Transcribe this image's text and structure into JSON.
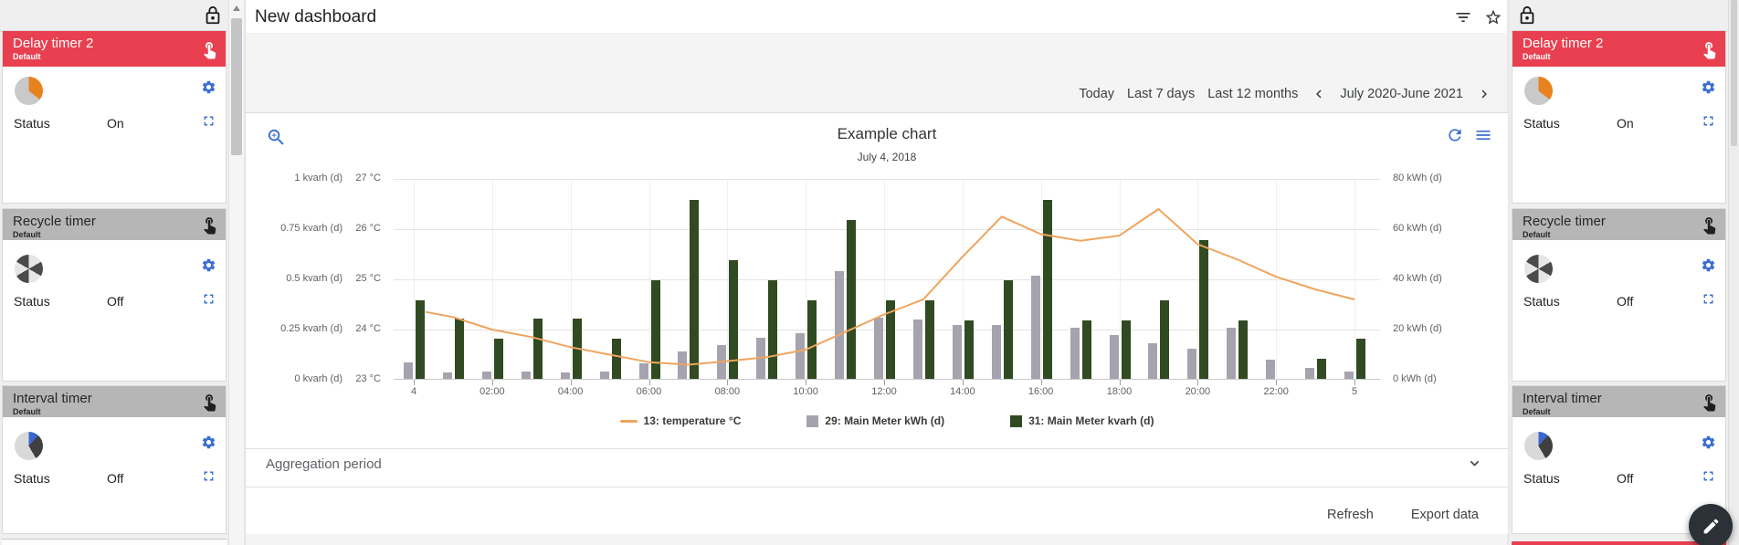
{
  "page": {
    "title": "New dashboard"
  },
  "header_icons": {
    "filter": "filter-list",
    "favorite": "star-outline"
  },
  "toolbar": {
    "today": "Today",
    "last7": "Last 7 days",
    "last12": "Last 12 months",
    "range_label": "July 2020-June 2021"
  },
  "sidebar": {
    "cards": [
      {
        "title": "Delay timer 2",
        "subtitle": "Default",
        "status_label": "Status",
        "status_value": "On",
        "accent": "#e84050"
      },
      {
        "title": "Recycle timer",
        "subtitle": "Default",
        "status_label": "Status",
        "status_value": "Off",
        "accent": "#b6b6b6"
      },
      {
        "title": "Interval timer",
        "subtitle": "Default",
        "status_label": "Status",
        "status_value": "Off",
        "accent": "#b6b6b6"
      }
    ]
  },
  "aggregation": {
    "label": "Aggregation period"
  },
  "actions": {
    "refresh": "Refresh",
    "export": "Export data"
  },
  "colors": {
    "accent_red": "#e84050",
    "icon_blue": "#3b6fd1",
    "bar_gray": "#a5a3ad",
    "bar_green": "#304a21",
    "line_orange": "#efa45e"
  },
  "chart_data": {
    "type": "bar+line",
    "title": "Example chart",
    "subtitle": "July 4, 2018",
    "x_tick_labels": [
      "4",
      "02:00",
      "04:00",
      "06:00",
      "08:00",
      "10:00",
      "12:00",
      "14:00",
      "16:00",
      "18:00",
      "20:00",
      "22:00",
      "5"
    ],
    "x_tick_hours": [
      0,
      2,
      4,
      6,
      8,
      10,
      12,
      14,
      16,
      18,
      20,
      22,
      24
    ],
    "axes": {
      "left_outer": {
        "label_ticks": [
          "0 kvarh (d)",
          "0.25 kvarh (d)",
          "0.5 kvarh (d)",
          "0.75 kvarh (d)",
          "1 kvarh (d)"
        ],
        "min": 0,
        "max": 1
      },
      "left_inner": {
        "label_ticks": [
          "23 °C",
          "24 °C",
          "25 °C",
          "26 °C",
          "27 °C"
        ],
        "min": 23,
        "max": 27
      },
      "right": {
        "label_ticks": [
          "0 kWh (d)",
          "20 kWh (d)",
          "40 kWh (d)",
          "60 kWh (d)",
          "80 kWh (d)"
        ],
        "min": 0,
        "max": 80
      }
    },
    "legend_position": "bottom",
    "grid": true,
    "series": [
      {
        "name": "13: temperature °C",
        "type": "line",
        "axis": "left_inner",
        "color": "#efa45e",
        "x": [
          0.3,
          1,
          2,
          3,
          4,
          5,
          6,
          7,
          8,
          9,
          10,
          11,
          12,
          13,
          14,
          15,
          16,
          17,
          18,
          19,
          20,
          21,
          22,
          23,
          24
        ],
        "values": [
          24.35,
          24.25,
          24.0,
          23.85,
          23.65,
          23.5,
          23.35,
          23.3,
          23.37,
          23.45,
          23.6,
          23.95,
          24.3,
          24.6,
          25.45,
          26.25,
          25.9,
          25.77,
          25.87,
          26.4,
          25.7,
          25.4,
          25.05,
          24.8,
          24.6
        ]
      },
      {
        "name": "29: Main Meter kWh (d)",
        "type": "bar",
        "axis": "right",
        "color": "#a5a3ad",
        "x": [
          0,
          1,
          2,
          3,
          4,
          5,
          6,
          7,
          8,
          9,
          10,
          11,
          12,
          13,
          14,
          15,
          16,
          17,
          18,
          19,
          20,
          21,
          22,
          23,
          24
        ],
        "values": [
          6.5,
          2.5,
          3,
          3,
          2.5,
          3,
          6,
          11,
          13.5,
          16.5,
          18,
          43,
          24.5,
          23.5,
          21.5,
          21.5,
          41,
          20.5,
          17.5,
          14,
          12,
          20.5,
          7.5,
          4.5,
          3
        ]
      },
      {
        "name": "31: Main Meter kvarh (d)",
        "type": "bar",
        "axis": "left_outer",
        "color": "#304a21",
        "x": [
          0,
          1,
          2,
          3,
          4,
          5,
          6,
          7,
          8,
          9,
          10,
          11,
          12,
          13,
          14,
          15,
          16,
          17,
          18,
          19,
          20,
          21,
          22,
          23,
          24
        ],
        "values": [
          0.39,
          0.3,
          0.2,
          0.3,
          0.3,
          0.2,
          0.49,
          0.89,
          0.59,
          0.49,
          0.39,
          0.79,
          0.39,
          0.39,
          0.29,
          0.49,
          0.89,
          0.29,
          0.29,
          0.39,
          0.69,
          0.29,
          0,
          0.1,
          0.2
        ]
      }
    ]
  }
}
